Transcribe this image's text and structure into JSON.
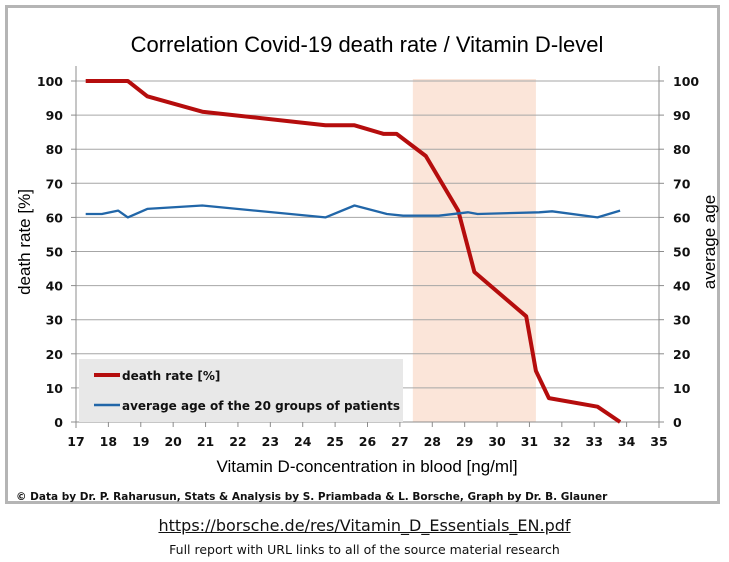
{
  "chart_data": {
    "type": "line",
    "title": "Correlation Covid-19 death rate / Vitamin D-level",
    "xlabel": "Vitamin D-concentration in blood [ng/ml]",
    "ylabel": "death rate [%]",
    "y2label": "average age",
    "xlim": [
      17,
      35
    ],
    "ylim": [
      0,
      100
    ],
    "y2lim": [
      0,
      100
    ],
    "x_ticks": [
      "17",
      "18",
      "19",
      "20",
      "21",
      "22",
      "23",
      "24",
      "25",
      "26",
      "27",
      "28",
      "29",
      "30",
      "31",
      "32",
      "33",
      "34",
      "35"
    ],
    "y_ticks": [
      "0",
      "10",
      "20",
      "30",
      "40",
      "50",
      "60",
      "70",
      "80",
      "90",
      "100"
    ],
    "y2_ticks": [
      "0",
      "10",
      "20",
      "30",
      "40",
      "50",
      "60",
      "70",
      "80",
      "90",
      "100"
    ],
    "grid": "horizontal",
    "highlight_band": {
      "x_from": 27.4,
      "x_to": 31.2,
      "color": "#fbe5d9"
    },
    "legend": {
      "placement": "bottom-left"
    },
    "series": [
      {
        "name": "death rate [%]",
        "axis": "left",
        "color": "#b50d0d",
        "points": [
          [
            17.3,
            100
          ],
          [
            18.6,
            100
          ],
          [
            19.2,
            95.5
          ],
          [
            20.9,
            91
          ],
          [
            24.7,
            87
          ],
          [
            25.6,
            87
          ],
          [
            26.5,
            84.5
          ],
          [
            26.9,
            84.5
          ],
          [
            27.8,
            78
          ],
          [
            28.8,
            62
          ],
          [
            29.3,
            44
          ],
          [
            30.9,
            31
          ],
          [
            31.2,
            15
          ],
          [
            31.6,
            7
          ],
          [
            33.1,
            4.5
          ],
          [
            33.8,
            0
          ]
        ]
      },
      {
        "name": "average age of the 20 groups of patients",
        "axis": "right",
        "color": "#2166a8",
        "points": [
          [
            17.3,
            61
          ],
          [
            17.8,
            61
          ],
          [
            18.3,
            62
          ],
          [
            18.6,
            60
          ],
          [
            19.2,
            62.5
          ],
          [
            20.9,
            63.5
          ],
          [
            24.7,
            60
          ],
          [
            25.6,
            63.5
          ],
          [
            26.6,
            61
          ],
          [
            27.1,
            60.5
          ],
          [
            28.2,
            60.5
          ],
          [
            29.1,
            61.5
          ],
          [
            29.4,
            61
          ],
          [
            31.3,
            61.5
          ],
          [
            31.7,
            61.8
          ],
          [
            33.1,
            60
          ],
          [
            33.8,
            62
          ]
        ]
      }
    ]
  },
  "credit": "© Data by Dr. P. Raharusun, Stats & Analysis by S. Priambada & L. Borsche, Graph by Dr. B. Glauner",
  "footer": {
    "url": "https://borsche.de/res/Vitamin_D_Essentials_EN.pdf",
    "caption": "Full report with URL links to all of the source material research"
  }
}
